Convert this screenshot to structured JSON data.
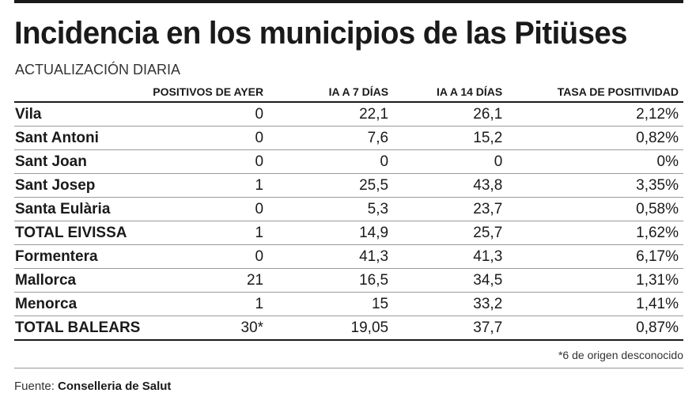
{
  "header": {
    "title": "Incidencia en los municipios de las Pitiüses",
    "subtitle": "ACTUALIZACIÓN DIARIA"
  },
  "table": {
    "columns": [
      "",
      "POSITIVOS DE AYER",
      "IA A 7 DÍAS",
      "IA A 14 DÍAS",
      "TASA DE POSITIVIDAD"
    ],
    "rows": [
      [
        "Vila",
        "0",
        "22,1",
        "26,1",
        "2,12%"
      ],
      [
        "Sant Antoni",
        "0",
        "7,6",
        "15,2",
        "0,82%"
      ],
      [
        "Sant Joan",
        "0",
        "0",
        "0",
        "0%"
      ],
      [
        "Sant Josep",
        "1",
        "25,5",
        "43,8",
        "3,35%"
      ],
      [
        "Santa Eulària",
        "0",
        "5,3",
        "23,7",
        "0,58%"
      ],
      [
        "TOTAL EIVISSA",
        "1",
        "14,9",
        "25,7",
        "1,62%"
      ],
      [
        "Formentera",
        "0",
        "41,3",
        "41,3",
        "6,17%"
      ],
      [
        "Mallorca",
        "21",
        "16,5",
        "34,5",
        "1,31%"
      ],
      [
        "Menorca",
        "1",
        "15",
        "33,2",
        "1,41%"
      ],
      [
        "TOTAL BALEARS",
        "30*",
        "19,05",
        "37,7",
        "0,87%"
      ]
    ]
  },
  "footnote": "*6 de origen desconocido",
  "source": {
    "label": "Fuente:",
    "name": "Conselleria de Salut"
  }
}
